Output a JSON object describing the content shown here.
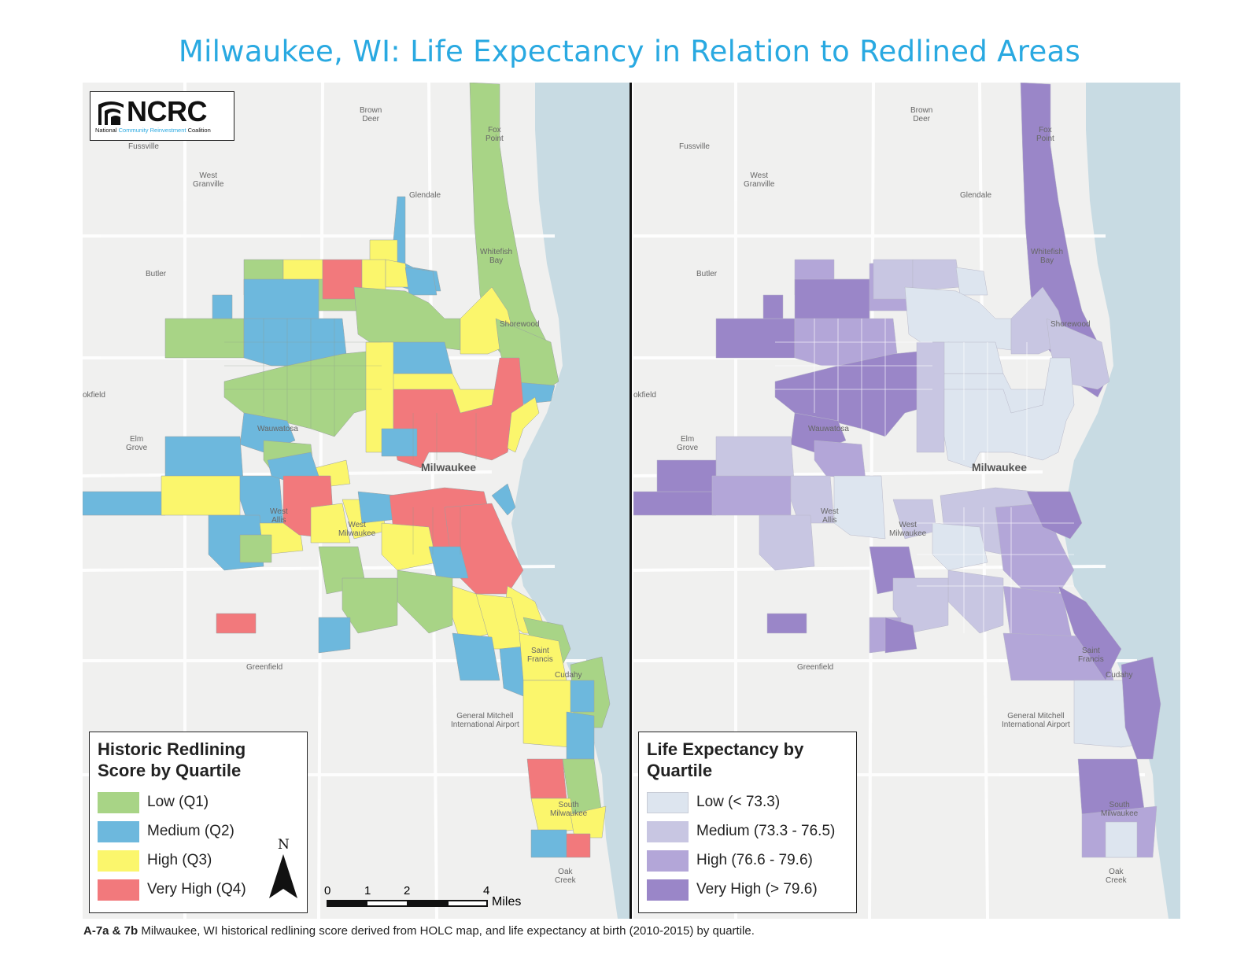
{
  "title": "Milwaukee, WI: Life Expectancy in Relation to Redlined Areas",
  "logo": {
    "name": "NCRC",
    "subtitle_1": "National",
    "subtitle_2": "Community Reinvestment",
    "subtitle_3": "Coalition"
  },
  "place_labels": {
    "brown_deer": "Brown\nDeer",
    "fox_point": "Fox\nPoint",
    "fussville": "Fussville",
    "west_granville": "West\nGranville",
    "glendale": "Glendale",
    "whitefish_bay": "Whitefish\nBay",
    "butler": "Butler",
    "shorewood": "Shorewood",
    "brookfield": "okfield",
    "elm_grove": "Elm\nGrove",
    "wauwatosa": "Wauwatosa",
    "milwaukee": "Milwaukee",
    "west_allis": "West\nAllis",
    "west_milwaukee": "West\nMilwaukee",
    "greenfield": "Greenfield",
    "saint_francis": "Saint\nFrancis",
    "cudahy": "Cudahy",
    "south_milwaukee": "South\nMilwaukee",
    "oak_creek": "Oak\nCreek",
    "airport": "General Mitchell\nInternational Airport"
  },
  "legend_redlining": {
    "title_line1": "Historic Redlining",
    "title_line2": "Score by Quartile",
    "items": [
      {
        "label": "Low (Q1)",
        "color": "#a8d486"
      },
      {
        "label": "Medium (Q2)",
        "color": "#6db8dd"
      },
      {
        "label": "High (Q3)",
        "color": "#fbf66c"
      },
      {
        "label": "Very High (Q4)",
        "color": "#f2797c"
      }
    ]
  },
  "legend_life": {
    "title_line1": "Life Expectancy by",
    "title_line2": "Quartile",
    "items": [
      {
        "label": "Low (< 73.3)",
        "color": "#dde5ef"
      },
      {
        "label": "Medium (73.3 - 76.5)",
        "color": "#c8c6e2"
      },
      {
        "label": "High (76.6 - 79.6)",
        "color": "#b3a6d8"
      },
      {
        "label": "Very High (> 79.6)",
        "color": "#9a86c8"
      }
    ]
  },
  "north_label": "N",
  "scale": {
    "ticks": [
      "0",
      "1",
      "2",
      "4"
    ],
    "unit": "Miles"
  },
  "caption": {
    "bold": "A-7a & 7b",
    "text": " Milwaukee, WI historical redlining score derived from HOLC map, and life expectancy at birth (2010-2015) by quartile."
  },
  "colors": {
    "water": "#c8dbe3",
    "land": "#f0f0ef",
    "title": "#29a9e1"
  }
}
